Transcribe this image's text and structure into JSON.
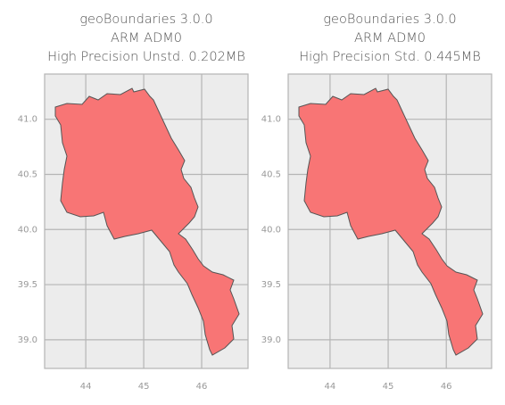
{
  "chart_data": [
    {
      "type": "map",
      "title": [
        "geoBoundaries 3.0.0",
        "ARM ADM0",
        "High Precision Unstd. 0.202MB"
      ],
      "xlim": [
        43.29,
        46.8
      ],
      "ylim": [
        38.74,
        41.41
      ],
      "xticks": [
        44,
        45,
        46
      ],
      "yticks": [
        {
          "value": 39,
          "label": "39.0"
        },
        {
          "value": 39.5,
          "label": "39.5"
        },
        {
          "value": 40,
          "label": "40.0"
        },
        {
          "value": 40.5,
          "label": "40.5"
        },
        {
          "value": 41,
          "label": "41.0"
        }
      ],
      "color": "#f87575",
      "grid": true
    },
    {
      "type": "map",
      "title": [
        "geoBoundaries 3.0.0",
        "ARM ADM0",
        "High Precision Std. 0.445MB"
      ],
      "xlim": [
        43.28,
        46.78
      ],
      "ylim": [
        38.74,
        41.41
      ],
      "xticks": [
        44,
        45,
        46
      ],
      "yticks": [
        {
          "value": 39,
          "label": "39.0"
        },
        {
          "value": 39.5,
          "label": "39.5"
        },
        {
          "value": 40,
          "label": "40.0"
        },
        {
          "value": 40.5,
          "label": "40.5"
        },
        {
          "value": 41,
          "label": "41.0"
        }
      ],
      "color": "#f87575",
      "grid": true
    }
  ]
}
